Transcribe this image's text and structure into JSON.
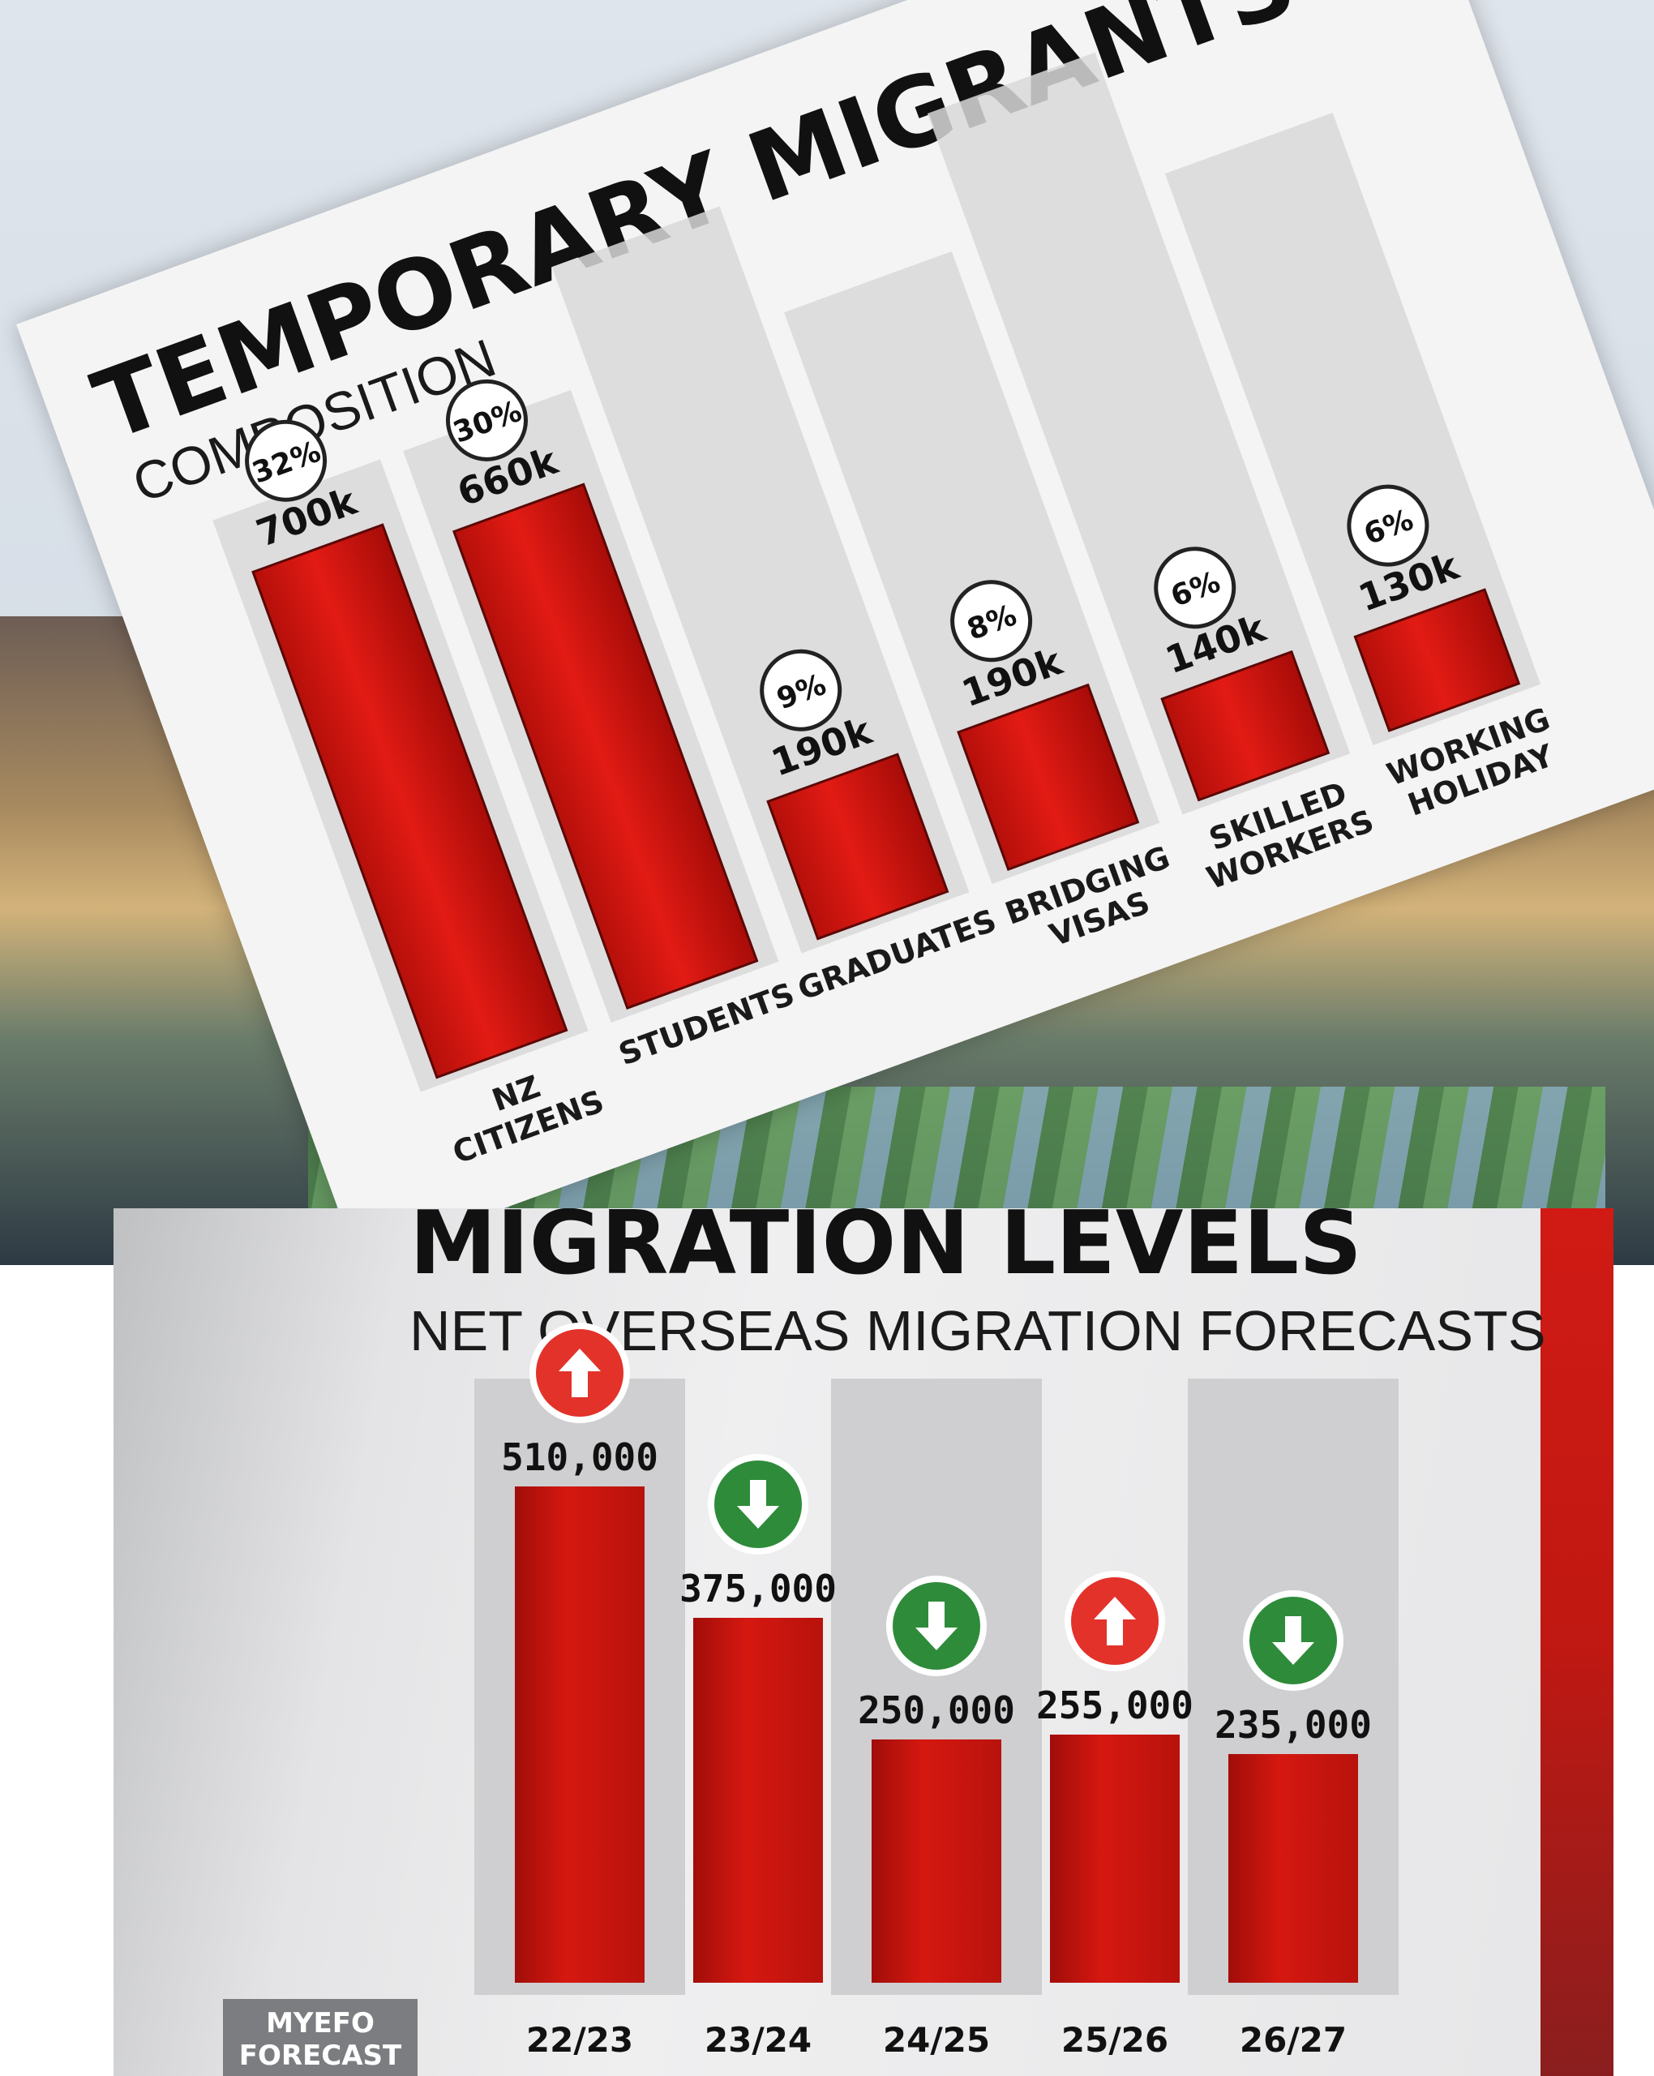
{
  "chart_data": [
    {
      "type": "bar",
      "title": "TEMPORARY MIGRANTS",
      "subtitle": "COMPOSITION",
      "categories": [
        "NZ CITIZENS",
        "STUDENTS",
        "GRADUATES",
        "BRIDGING VISAS",
        "SKILLED WORKERS",
        "WORKING HOLIDAY"
      ],
      "values": [
        700000,
        660000,
        190000,
        190000,
        140000,
        130000
      ],
      "value_labels": [
        "700k",
        "660k",
        "190k",
        "190k",
        "140k",
        "130k"
      ],
      "percent_labels": [
        "32%",
        "30%",
        "9%",
        "8%",
        "6%",
        "6%"
      ],
      "ylim": [
        0,
        760000
      ],
      "colors": {
        "bar": "#e21b14",
        "track": "#d8d8d8",
        "background": "#f4f4f4"
      }
    },
    {
      "type": "bar",
      "title": "MIGRATION LEVELS",
      "subtitle": "NET OVERSEAS MIGRATION FORECASTS",
      "categories": [
        "22/23",
        "23/24",
        "24/25",
        "25/26",
        "26/27"
      ],
      "values": [
        510000,
        375000,
        250000,
        255000,
        235000
      ],
      "value_labels": [
        "510,000",
        "375,000",
        "250,000",
        "255,000",
        "235,000"
      ],
      "trend": [
        "up",
        "down",
        "down",
        "up",
        "down"
      ],
      "ylim": [
        0,
        600000
      ],
      "badge": "MYEFO FORECAST",
      "colors": {
        "bar": "#d51810",
        "up": "#e2322a",
        "down": "#2e8b3a",
        "track": "#cfcfd1"
      }
    }
  ],
  "myefo": {
    "line1": "MYEFO",
    "line2": "FORECAST"
  }
}
